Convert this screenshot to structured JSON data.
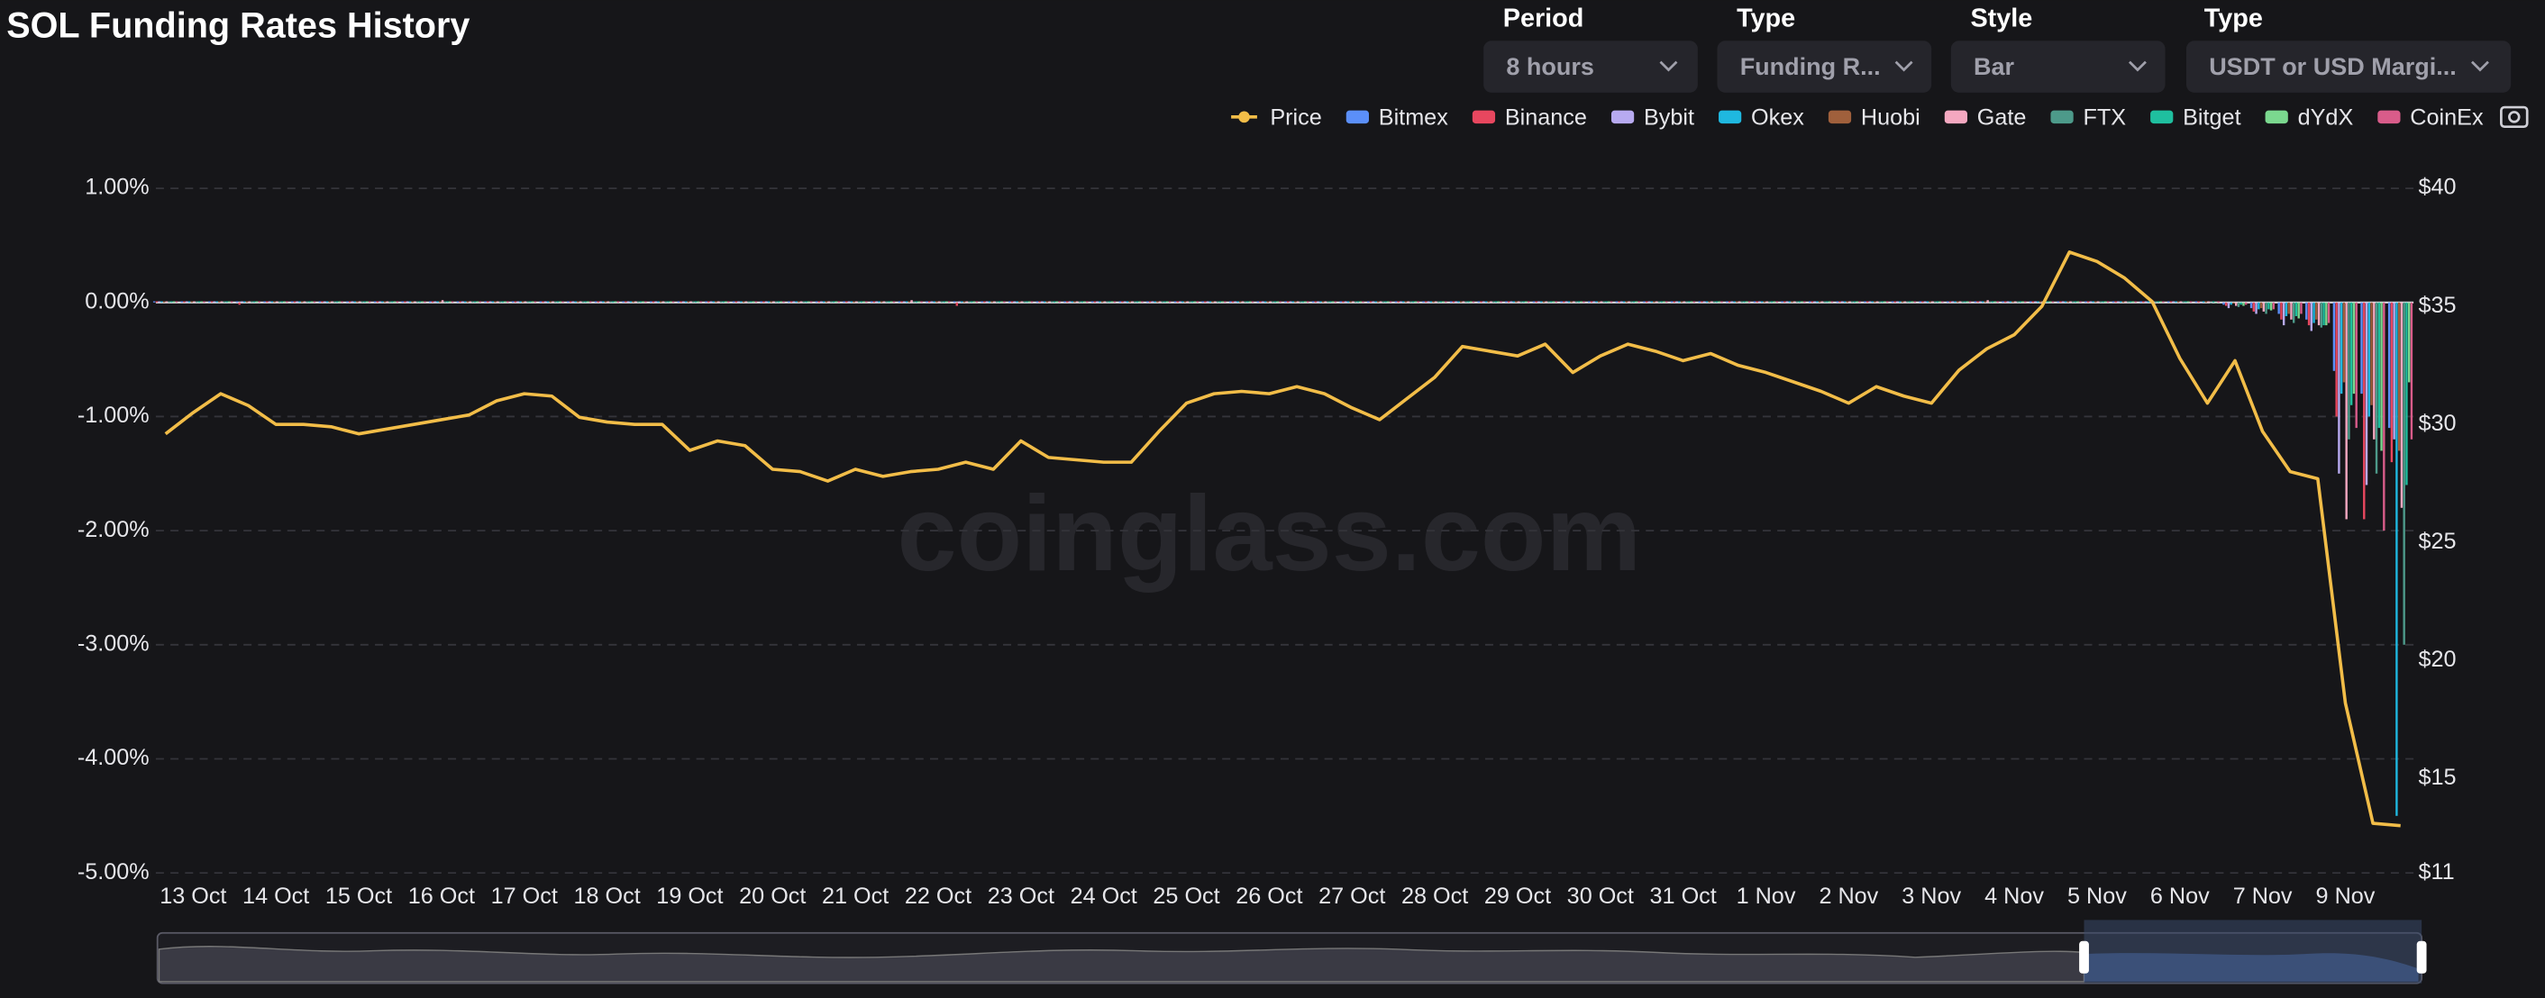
{
  "header": {
    "title": "SOL Funding Rates History",
    "controls": [
      {
        "label": "Period",
        "value": "8 hours"
      },
      {
        "label": "Type",
        "value": "Funding R..."
      },
      {
        "label": "Style",
        "value": "Bar"
      },
      {
        "label": "Type",
        "value": "USDT or USD Margi..."
      }
    ]
  },
  "watermark": "coinglass.com",
  "chart_data": {
    "type": "bar",
    "grid": true,
    "legend": "top-right",
    "categories": [
      null,
      "13 Oct",
      null,
      null,
      "14 Oct",
      null,
      null,
      "15 Oct",
      null,
      null,
      "16 Oct",
      null,
      null,
      "17 Oct",
      null,
      null,
      "18 Oct",
      null,
      null,
      "19 Oct",
      null,
      null,
      "20 Oct",
      null,
      null,
      "21 Oct",
      null,
      null,
      "22 Oct",
      null,
      null,
      "23 Oct",
      null,
      null,
      "24 Oct",
      null,
      null,
      "25 Oct",
      null,
      null,
      "26 Oct",
      null,
      null,
      "27 Oct",
      null,
      null,
      "28 Oct",
      null,
      null,
      "29 Oct",
      null,
      null,
      "30 Oct",
      null,
      null,
      "31 Oct",
      null,
      null,
      "1 Nov",
      null,
      null,
      "2 Nov",
      null,
      null,
      "3 Nov",
      null,
      null,
      "4 Nov",
      null,
      null,
      "5 Nov",
      null,
      null,
      "6 Nov",
      null,
      null,
      "7 Nov",
      null,
      null,
      "9 Nov",
      null,
      null
    ],
    "ylim": [
      -5,
      1
    ],
    "yticks": [
      {
        "value": 1,
        "label": "1.00%"
      },
      {
        "value": 0,
        "label": "0.00%"
      },
      {
        "value": -1,
        "label": "-1.00%"
      },
      {
        "value": -2,
        "label": "-2.00%"
      },
      {
        "value": -3,
        "label": "-3.00%"
      },
      {
        "value": -4,
        "label": "-4.00%"
      },
      {
        "value": -5,
        "label": "-5.00%"
      }
    ],
    "y2lim": [
      11,
      40
    ],
    "y2ticks": [
      {
        "value": 40,
        "label": "$40"
      },
      {
        "value": 35,
        "label": "$35"
      },
      {
        "value": 30,
        "label": "$30"
      },
      {
        "value": 25,
        "label": "$25"
      },
      {
        "value": 20,
        "label": "$20"
      },
      {
        "value": 15,
        "label": "$15"
      },
      {
        "value": 11,
        "label": "$11"
      }
    ],
    "series": [
      {
        "name": "Price",
        "type": "line",
        "axis": "y2",
        "color": "#f2bd48",
        "values": [
          29.6,
          30.5,
          31.3,
          30.8,
          30.0,
          30.0,
          29.9,
          29.6,
          29.8,
          30.0,
          30.2,
          30.4,
          31.0,
          31.3,
          31.2,
          30.3,
          30.1,
          30.0,
          30.0,
          28.9,
          29.3,
          29.1,
          28.1,
          28.0,
          27.6,
          28.1,
          27.8,
          28.0,
          28.1,
          28.4,
          28.1,
          29.3,
          28.6,
          28.5,
          28.4,
          28.4,
          29.7,
          30.9,
          31.3,
          31.4,
          31.3,
          31.6,
          31.3,
          30.7,
          30.2,
          31.1,
          32.0,
          33.3,
          33.1,
          32.9,
          33.4,
          32.2,
          32.9,
          33.4,
          33.1,
          32.7,
          33.0,
          32.5,
          32.2,
          31.8,
          31.4,
          30.9,
          31.6,
          31.2,
          30.9,
          32.3,
          33.2,
          33.8,
          35.0,
          37.3,
          36.9,
          36.2,
          35.2,
          32.8,
          30.9,
          32.7,
          29.7,
          28.0,
          27.7,
          18.2,
          13.1,
          13.0
        ]
      },
      {
        "name": "Bitmex",
        "color": "#5b8ff9",
        "values": [
          0.01,
          0.01,
          0.01,
          0.01,
          0.01,
          0.01,
          0.01,
          0.01,
          0.01,
          0.01,
          0.01,
          0.01,
          0.01,
          0.01,
          0.01,
          0.01,
          0.01,
          0.01,
          0.01,
          0.01,
          0.01,
          0.01,
          0.01,
          0.01,
          0.01,
          0.01,
          0.01,
          0.01,
          0.01,
          0.01,
          0.01,
          0.01,
          0.01,
          0.01,
          0.01,
          0.01,
          0.01,
          0.01,
          0.01,
          0.01,
          0.01,
          0.01,
          0.01,
          0.01,
          0.01,
          0.01,
          0.01,
          0.01,
          0.01,
          0.01,
          0.01,
          0.01,
          0.01,
          0.01,
          0.01,
          0.01,
          0.01,
          0.01,
          0.01,
          0.01,
          0.01,
          0.01,
          0.01,
          0.01,
          0.01,
          0.01,
          0.01,
          0.01,
          0.01,
          0.01,
          0.01,
          0.01,
          0.01,
          0.01,
          0.01,
          -0.02,
          -0.05,
          -0.1,
          -0.15,
          -0.6,
          -0.8,
          -1.1
        ]
      },
      {
        "name": "Binance",
        "color": "#e8475f",
        "values": [
          0.01,
          0.01,
          0.01,
          -0.02,
          0.01,
          0.01,
          0.01,
          0.01,
          0.01,
          0.01,
          0.01,
          0.01,
          0.01,
          0.01,
          0.01,
          0.01,
          0.01,
          0.01,
          0.01,
          0.01,
          0.01,
          0.01,
          0.01,
          0.01,
          0.01,
          0.01,
          0.01,
          0.01,
          0.01,
          -0.03,
          0.01,
          0.01,
          0.01,
          0.01,
          0.01,
          0.01,
          0.01,
          0.01,
          0.01,
          0.01,
          0.01,
          0.01,
          0.01,
          0.01,
          0.01,
          0.01,
          0.01,
          0.01,
          0.01,
          0.01,
          0.01,
          0.01,
          0.01,
          0.01,
          0.01,
          0.01,
          0.01,
          0.01,
          0.01,
          0.01,
          0.01,
          0.01,
          0.01,
          0.01,
          0.01,
          0.01,
          0.01,
          0.01,
          0.01,
          0.01,
          0.01,
          0.01,
          0.01,
          0.01,
          0.01,
          -0.03,
          -0.08,
          -0.15,
          -0.2,
          -1.0,
          -1.9,
          -1.4
        ]
      },
      {
        "name": "Bybit",
        "color": "#b7aaf0",
        "values": [
          0.01,
          0.01,
          0.01,
          0.01,
          0.01,
          0.01,
          0.01,
          0.01,
          0.01,
          0.01,
          0.01,
          0.01,
          0.01,
          0.01,
          0.01,
          0.01,
          0.01,
          0.01,
          0.01,
          0.01,
          0.01,
          0.01,
          0.01,
          0.01,
          0.01,
          0.01,
          0.01,
          0.01,
          0.01,
          0.01,
          0.01,
          0.01,
          0.01,
          0.01,
          0.01,
          0.01,
          0.01,
          0.01,
          0.01,
          0.01,
          0.01,
          0.01,
          0.01,
          0.01,
          0.01,
          0.01,
          0.01,
          0.01,
          0.01,
          0.01,
          0.01,
          0.01,
          0.01,
          0.01,
          0.01,
          0.01,
          0.01,
          0.01,
          0.01,
          0.01,
          0.01,
          0.01,
          0.01,
          0.01,
          0.01,
          0.01,
          0.01,
          0.01,
          0.01,
          0.01,
          0.01,
          0.01,
          0.01,
          0.01,
          0.0,
          -0.05,
          -0.1,
          -0.2,
          -0.25,
          -1.5,
          -1.6,
          -1.2
        ]
      },
      {
        "name": "Okex",
        "color": "#1fb8e0",
        "values": [
          0.01,
          0.01,
          0.01,
          0.01,
          0.01,
          0.01,
          0.01,
          0.01,
          0.01,
          0.01,
          0.01,
          0.01,
          0.01,
          0.01,
          0.01,
          0.01,
          0.01,
          0.01,
          0.01,
          0.01,
          0.01,
          0.01,
          0.01,
          0.01,
          0.01,
          0.01,
          0.01,
          0.01,
          0.01,
          0.01,
          0.01,
          0.01,
          0.01,
          0.01,
          0.01,
          0.01,
          0.01,
          0.01,
          0.01,
          0.01,
          0.01,
          0.01,
          0.01,
          0.01,
          0.01,
          0.01,
          0.01,
          0.01,
          0.01,
          0.01,
          0.01,
          0.01,
          0.01,
          0.01,
          0.01,
          0.01,
          0.01,
          0.01,
          0.01,
          0.01,
          0.01,
          0.01,
          0.01,
          0.01,
          0.01,
          0.01,
          0.01,
          0.01,
          0.01,
          0.01,
          0.01,
          0.01,
          0.01,
          0.01,
          0.01,
          -0.02,
          -0.06,
          -0.12,
          -0.18,
          -0.8,
          -1.0,
          -4.5
        ]
      },
      {
        "name": "Huobi",
        "color": "#a0603c",
        "values": [
          0.01,
          0.01,
          0.01,
          0.01,
          0.01,
          0.01,
          0.01,
          0.01,
          0.01,
          0.01,
          0.01,
          0.01,
          0.01,
          0.01,
          0.01,
          0.01,
          0.01,
          0.01,
          0.01,
          0.01,
          0.01,
          0.01,
          0.01,
          0.01,
          0.01,
          0.01,
          0.01,
          0.01,
          0.01,
          0.01,
          0.01,
          0.01,
          0.01,
          0.01,
          0.01,
          0.01,
          0.01,
          0.01,
          0.01,
          0.01,
          0.01,
          0.01,
          0.01,
          0.01,
          0.01,
          0.01,
          0.01,
          0.01,
          0.01,
          0.01,
          0.01,
          0.01,
          0.01,
          0.01,
          0.01,
          0.01,
          0.01,
          0.01,
          0.01,
          0.01,
          0.01,
          0.01,
          0.01,
          0.01,
          0.01,
          0.01,
          0.01,
          0.01,
          0.01,
          0.01,
          0.01,
          0.01,
          0.01,
          0.01,
          0.01,
          -0.01,
          -0.05,
          -0.1,
          -0.15,
          -0.7,
          -0.9,
          -1.3
        ]
      },
      {
        "name": "Gate",
        "color": "#f4a8c0",
        "values": [
          0.01,
          0.01,
          0.01,
          0.01,
          0.01,
          0.01,
          0.01,
          0.01,
          0.01,
          0.01,
          0.02,
          0.01,
          0.01,
          0.01,
          0.01,
          0.01,
          0.01,
          0.01,
          0.01,
          0.01,
          0.01,
          0.01,
          0.01,
          0.01,
          0.01,
          0.01,
          0.01,
          0.02,
          0.01,
          0.01,
          0.01,
          0.01,
          0.01,
          0.01,
          0.01,
          0.01,
          0.01,
          0.01,
          0.01,
          0.01,
          0.01,
          0.01,
          0.01,
          0.01,
          0.01,
          0.01,
          0.01,
          0.01,
          0.01,
          0.01,
          0.01,
          0.01,
          0.01,
          0.01,
          0.01,
          0.01,
          0.01,
          0.01,
          0.01,
          0.01,
          0.01,
          0.01,
          0.01,
          0.01,
          0.01,
          0.01,
          0.02,
          0.01,
          0.01,
          0.01,
          0.01,
          0.01,
          0.01,
          0.01,
          0.01,
          -0.03,
          -0.08,
          -0.15,
          -0.2,
          -1.9,
          -1.2,
          -1.8
        ]
      },
      {
        "name": "FTX",
        "color": "#4d9a8a",
        "values": [
          0.01,
          0.01,
          0.01,
          0.01,
          0.01,
          0.01,
          0.01,
          0.01,
          0.01,
          0.01,
          0.01,
          0.01,
          0.01,
          0.01,
          0.01,
          0.01,
          0.01,
          0.01,
          0.01,
          0.01,
          0.01,
          0.01,
          0.01,
          0.01,
          0.01,
          0.01,
          0.01,
          0.01,
          0.01,
          0.01,
          0.01,
          0.01,
          0.01,
          0.01,
          0.01,
          0.01,
          0.01,
          0.01,
          0.01,
          0.01,
          0.01,
          0.01,
          0.01,
          0.01,
          0.01,
          0.01,
          0.01,
          0.01,
          0.01,
          0.01,
          0.01,
          0.01,
          0.01,
          0.01,
          0.01,
          0.01,
          0.01,
          0.01,
          0.01,
          0.01,
          0.01,
          0.01,
          0.01,
          0.01,
          0.01,
          0.01,
          0.01,
          0.01,
          0.01,
          0.01,
          0.01,
          0.01,
          0.01,
          0.01,
          0.0,
          -0.04,
          -0.1,
          -0.18,
          -0.22,
          -1.2,
          -1.5,
          -3.0
        ]
      },
      {
        "name": "Bitget",
        "color": "#1fbf9f",
        "values": [
          0.01,
          0.01,
          0.01,
          0.01,
          0.01,
          0.01,
          0.01,
          0.01,
          0.01,
          0.01,
          0.01,
          0.01,
          0.01,
          0.01,
          0.01,
          0.01,
          0.01,
          0.01,
          0.01,
          0.01,
          0.01,
          0.01,
          0.01,
          0.01,
          0.01,
          0.01,
          0.01,
          0.01,
          0.01,
          0.01,
          0.01,
          0.01,
          0.01,
          0.01,
          0.01,
          0.01,
          0.01,
          0.01,
          0.01,
          0.01,
          0.01,
          0.01,
          0.01,
          0.01,
          0.01,
          0.01,
          0.01,
          0.01,
          0.01,
          0.01,
          0.01,
          0.01,
          0.01,
          0.01,
          0.01,
          0.01,
          0.01,
          0.01,
          0.01,
          0.01,
          0.01,
          0.01,
          0.01,
          0.01,
          0.01,
          0.01,
          0.01,
          0.01,
          0.01,
          0.01,
          0.01,
          0.01,
          0.01,
          0.01,
          0.01,
          -0.02,
          -0.06,
          -0.12,
          -0.2,
          -0.9,
          -1.1,
          -1.6
        ]
      },
      {
        "name": "dYdX",
        "color": "#7bd88f",
        "values": [
          0.01,
          0.01,
          0.01,
          0.01,
          0.01,
          0.01,
          0.01,
          0.01,
          0.01,
          0.01,
          0.01,
          0.01,
          0.01,
          0.01,
          0.01,
          0.01,
          0.01,
          0.01,
          0.01,
          0.01,
          0.01,
          0.01,
          0.01,
          0.01,
          0.01,
          0.01,
          0.01,
          0.01,
          0.01,
          0.01,
          0.01,
          0.01,
          0.01,
          0.01,
          0.01,
          0.01,
          0.01,
          0.01,
          0.01,
          0.01,
          0.01,
          0.01,
          0.01,
          0.01,
          0.01,
          0.01,
          0.01,
          0.01,
          0.01,
          0.01,
          0.01,
          0.01,
          0.01,
          0.01,
          0.01,
          0.01,
          0.01,
          0.01,
          0.01,
          0.01,
          0.01,
          0.01,
          0.01,
          0.01,
          0.01,
          0.01,
          0.01,
          0.01,
          0.01,
          0.01,
          0.01,
          0.01,
          0.01,
          0.01,
          0.0,
          -0.03,
          -0.07,
          -0.14,
          -0.2,
          -0.8,
          -1.3,
          -0.7
        ]
      },
      {
        "name": "CoinEx",
        "color": "#d95c8a",
        "values": [
          0.01,
          0.01,
          0.01,
          0.01,
          0.01,
          0.01,
          0.01,
          0.01,
          0.01,
          0.01,
          0.01,
          0.01,
          0.01,
          0.01,
          0.01,
          0.01,
          0.01,
          0.01,
          0.01,
          0.01,
          0.01,
          0.01,
          0.01,
          0.01,
          0.01,
          0.01,
          0.01,
          0.01,
          0.01,
          0.01,
          0.01,
          0.01,
          0.01,
          0.01,
          0.01,
          0.01,
          0.01,
          0.01,
          0.01,
          0.01,
          0.01,
          0.01,
          0.01,
          0.01,
          0.01,
          0.01,
          0.01,
          0.01,
          0.01,
          0.01,
          0.01,
          0.01,
          0.01,
          0.01,
          0.01,
          0.01,
          0.01,
          0.01,
          0.01,
          0.01,
          0.01,
          0.01,
          0.01,
          0.01,
          0.01,
          0.01,
          0.01,
          0.01,
          0.01,
          0.01,
          0.01,
          0.01,
          0.01,
          0.01,
          0.01,
          -0.02,
          -0.06,
          -0.1,
          -0.18,
          -1.1,
          -2.0,
          -1.2
        ]
      }
    ]
  }
}
